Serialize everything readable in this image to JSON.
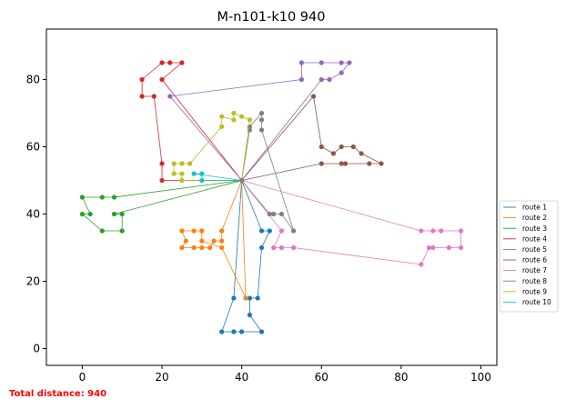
{
  "chart_data": {
    "type": "line",
    "title": "M-n101-k10 940",
    "xlabel": "",
    "ylabel": "",
    "xlim": [
      -9,
      104
    ],
    "ylim": [
      -5,
      95
    ],
    "xticks": [
      0,
      20,
      40,
      60,
      80,
      100
    ],
    "yticks": [
      0,
      20,
      40,
      60,
      80
    ],
    "grid": false,
    "legend": "lower-right-outside",
    "depot": [
      40,
      50
    ],
    "series": [
      {
        "name": "route 1",
        "color": "#1f77b4",
        "points": [
          [
            40,
            50
          ],
          [
            45,
            35
          ],
          [
            47,
            35
          ],
          [
            45,
            30
          ],
          [
            44,
            15
          ],
          [
            42,
            15
          ],
          [
            42,
            10
          ],
          [
            45,
            5
          ],
          [
            40,
            5
          ],
          [
            38,
            5
          ],
          [
            35,
            5
          ],
          [
            38,
            15
          ],
          [
            40,
            50
          ]
        ]
      },
      {
        "name": "route 2",
        "color": "#ff7f0e",
        "points": [
          [
            40,
            50
          ],
          [
            35,
            35
          ],
          [
            35,
            32
          ],
          [
            33,
            32
          ],
          [
            32,
            30
          ],
          [
            30,
            30
          ],
          [
            28,
            30
          ],
          [
            25,
            30
          ],
          [
            26,
            32
          ],
          [
            25,
            35
          ],
          [
            28,
            35
          ],
          [
            30,
            35
          ],
          [
            30,
            32
          ],
          [
            35,
            30
          ],
          [
            41,
            15
          ],
          [
            40,
            50
          ]
        ]
      },
      {
        "name": "route 3",
        "color": "#2ca02c",
        "points": [
          [
            40,
            50
          ],
          [
            8,
            45
          ],
          [
            5,
            45
          ],
          [
            0,
            45
          ],
          [
            2,
            40
          ],
          [
            0,
            40
          ],
          [
            5,
            35
          ],
          [
            10,
            35
          ],
          [
            10,
            40
          ],
          [
            8,
            40
          ],
          [
            40,
            50
          ]
        ]
      },
      {
        "name": "route 4",
        "color": "#d62728",
        "points": [
          [
            40,
            50
          ],
          [
            20,
            50
          ],
          [
            20,
            55
          ],
          [
            18,
            75
          ],
          [
            15,
            75
          ],
          [
            15,
            80
          ],
          [
            20,
            85
          ],
          [
            22,
            85
          ],
          [
            25,
            85
          ],
          [
            20,
            80
          ],
          [
            40,
            50
          ]
        ]
      },
      {
        "name": "route 5",
        "color": "#9467bd",
        "points": [
          [
            40,
            50
          ],
          [
            22,
            75
          ],
          [
            55,
            80
          ],
          [
            55,
            85
          ],
          [
            60,
            85
          ],
          [
            65,
            85
          ],
          [
            67,
            85
          ],
          [
            65,
            82
          ],
          [
            62,
            80
          ],
          [
            60,
            80
          ],
          [
            40,
            50
          ]
        ]
      },
      {
        "name": "route 6",
        "color": "#8c564b",
        "points": [
          [
            40,
            50
          ],
          [
            58,
            75
          ],
          [
            60,
            60
          ],
          [
            63,
            58
          ],
          [
            65,
            60
          ],
          [
            68,
            60
          ],
          [
            70,
            58
          ],
          [
            75,
            55
          ],
          [
            72,
            55
          ],
          [
            66,
            55
          ],
          [
            65,
            55
          ],
          [
            60,
            55
          ],
          [
            40,
            50
          ]
        ]
      },
      {
        "name": "route 7",
        "color": "#e377c2",
        "points": [
          [
            40,
            50
          ],
          [
            85,
            35
          ],
          [
            88,
            35
          ],
          [
            90,
            35
          ],
          [
            95,
            35
          ],
          [
            95,
            30
          ],
          [
            92,
            30
          ],
          [
            88,
            30
          ],
          [
            87,
            30
          ],
          [
            85,
            25
          ],
          [
            53,
            30
          ],
          [
            50,
            30
          ],
          [
            48,
            30
          ],
          [
            50,
            35
          ],
          [
            40,
            50
          ]
        ]
      },
      {
        "name": "route 8",
        "color": "#7f7f7f",
        "points": [
          [
            40,
            50
          ],
          [
            42,
            65
          ],
          [
            42,
            66
          ],
          [
            45,
            70
          ],
          [
            45,
            68
          ],
          [
            45,
            65
          ],
          [
            53,
            35
          ],
          [
            50,
            40
          ],
          [
            48,
            40
          ],
          [
            47,
            40
          ],
          [
            40,
            50
          ]
        ]
      },
      {
        "name": "route 9",
        "color": "#bcbd22",
        "points": [
          [
            40,
            50
          ],
          [
            42,
            68
          ],
          [
            40,
            69
          ],
          [
            38,
            70
          ],
          [
            38,
            68
          ],
          [
            35,
            69
          ],
          [
            35,
            66
          ],
          [
            27,
            55
          ],
          [
            25,
            55
          ],
          [
            23,
            55
          ],
          [
            23,
            52
          ],
          [
            25,
            52
          ],
          [
            25,
            50
          ],
          [
            40,
            50
          ]
        ]
      },
      {
        "name": "route 10",
        "color": "#17becf",
        "points": [
          [
            40,
            50
          ],
          [
            30,
            50
          ],
          [
            30,
            52
          ],
          [
            28,
            52
          ],
          [
            40,
            50
          ]
        ]
      }
    ]
  },
  "footer": {
    "total_distance_text": "Total distance: 940"
  }
}
